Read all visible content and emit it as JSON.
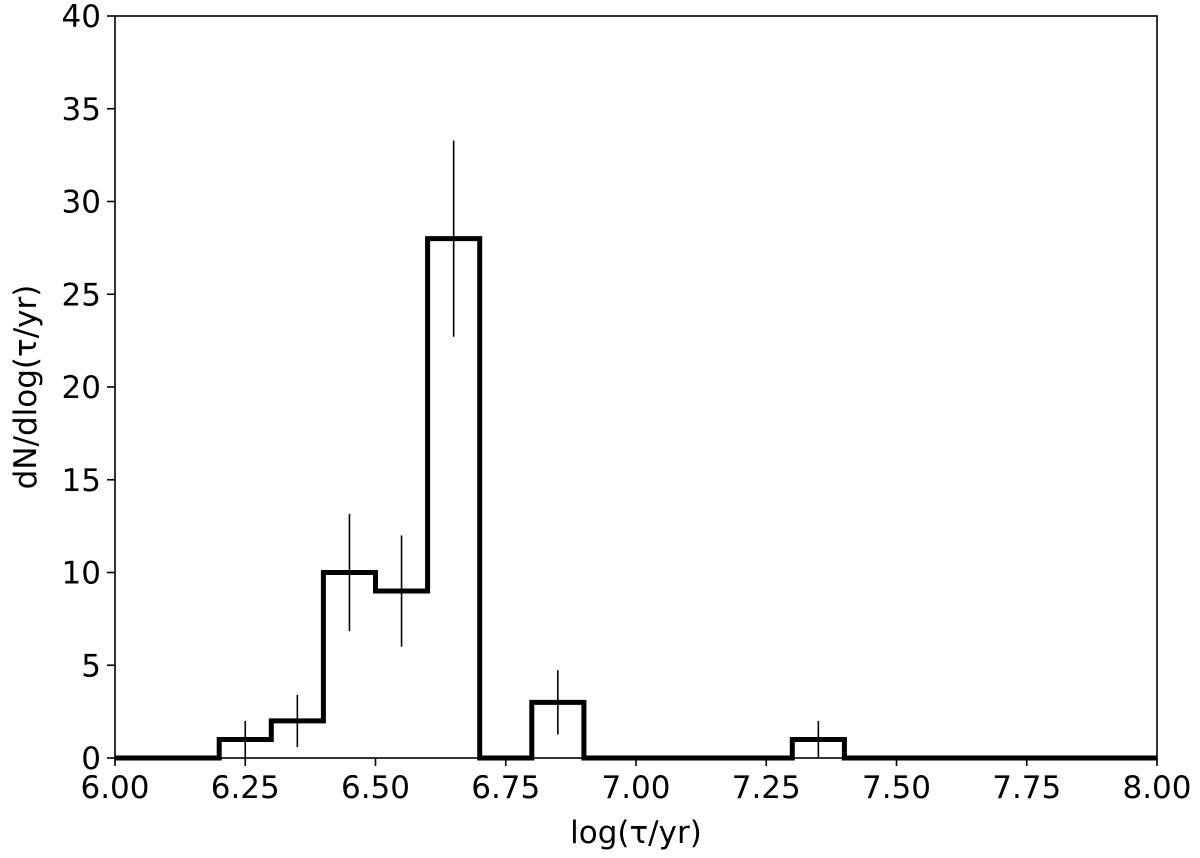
{
  "chart_data": {
    "type": "histogram",
    "title": "",
    "xlabel": "log(τ/yr)",
    "ylabel": "dN/dlog(τ/yr)",
    "xlim": [
      6.0,
      8.0
    ],
    "ylim": [
      0,
      40
    ],
    "x_ticks": [
      "6.00",
      "6.25",
      "6.50",
      "6.75",
      "7.00",
      "7.25",
      "7.50",
      "7.75",
      "8.00"
    ],
    "y_ticks": [
      "0",
      "5",
      "10",
      "15",
      "20",
      "25",
      "30",
      "35",
      "40"
    ],
    "bin_width": 0.1,
    "bin_centers": [
      6.05,
      6.15,
      6.25,
      6.35,
      6.45,
      6.55,
      6.65,
      6.75,
      6.85,
      6.95,
      7.05,
      7.15,
      7.25,
      7.35,
      7.45,
      7.55,
      7.65,
      7.75,
      7.85,
      7.95
    ],
    "values": [
      0,
      0,
      1,
      2,
      10,
      9,
      28,
      0,
      3,
      0,
      0,
      0,
      0,
      1,
      0,
      0,
      0,
      0,
      0,
      0
    ],
    "errors": [
      0,
      0,
      1,
      1.41,
      3.16,
      3,
      5.29,
      0,
      1.73,
      0,
      0,
      0,
      0,
      1,
      0,
      0,
      0,
      0,
      0,
      0
    ],
    "grid": false,
    "line_color": "#000000"
  }
}
